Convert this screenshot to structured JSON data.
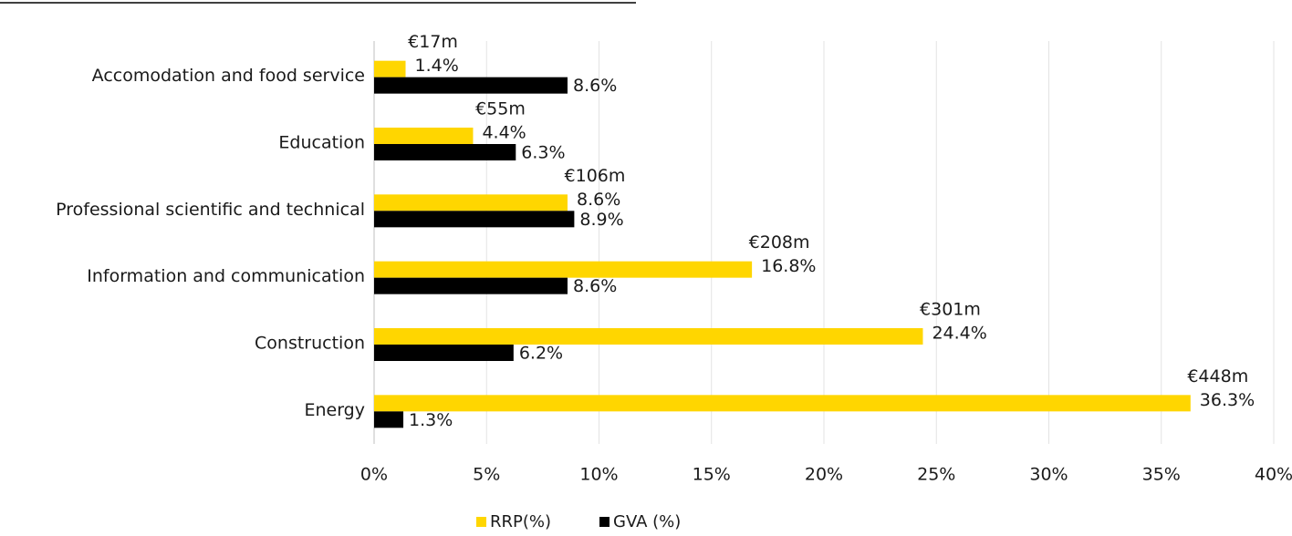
{
  "chart_data": {
    "type": "bar",
    "orientation": "horizontal",
    "categories": [
      "Accomodation and food service",
      "Education",
      "Professional scientific and technical",
      "Information and communication",
      "Construction",
      "Energy"
    ],
    "series": [
      {
        "name": "RRP(%)",
        "color": "#ffd600",
        "values": [
          1.4,
          4.4,
          8.6,
          16.8,
          24.4,
          36.3
        ],
        "value_labels": [
          "1.4%",
          "4.4%",
          "8.6%",
          "16.8%",
          "24.4%",
          "36.3%"
        ]
      },
      {
        "name": "GVA (%)",
        "color": "#000000",
        "values": [
          8.6,
          6.3,
          8.9,
          8.6,
          6.2,
          1.3
        ],
        "value_labels": [
          "8.6%",
          "6.3%",
          "8.9%",
          "8.6%",
          "6.2%",
          "1.3%"
        ]
      }
    ],
    "annotations": [
      "€17m",
      "€55m",
      "€106m",
      "€208m",
      "€301m",
      "€448m"
    ],
    "xlim": [
      0,
      40
    ],
    "xticks": [
      {
        "value": 0,
        "label": "0%"
      },
      {
        "value": 5,
        "label": "5%"
      },
      {
        "value": 10,
        "label": "10%"
      },
      {
        "value": 15,
        "label": "15%"
      },
      {
        "value": 20,
        "label": "20%"
      },
      {
        "value": 25,
        "label": "25%"
      },
      {
        "value": 30,
        "label": "30%"
      },
      {
        "value": 35,
        "label": "35%"
      },
      {
        "value": 40,
        "label": "40%"
      }
    ],
    "grid": true,
    "legend": "bottom"
  }
}
